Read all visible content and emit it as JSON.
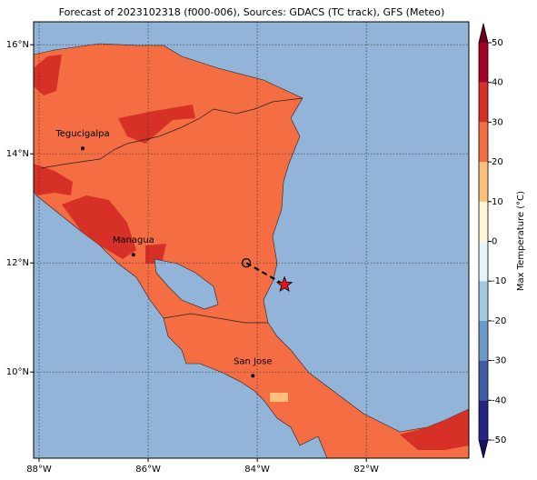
{
  "map": {
    "title": "Forecast of 2023102318 (f000-006), Sources: GDACS (TC track), GFS (Meteo)",
    "xlim": [
      -88.1,
      -80.12
    ],
    "ylim": [
      8.42,
      16.42
    ],
    "xticks": [
      {
        "value": -88,
        "label": "88°W"
      },
      {
        "value": -86,
        "label": "86°W"
      },
      {
        "value": -84,
        "label": "84°W"
      },
      {
        "value": -82,
        "label": "82°W"
      }
    ],
    "yticks": [
      {
        "value": 10,
        "label": "10°N"
      },
      {
        "value": 12,
        "label": "12°N"
      },
      {
        "value": 14,
        "label": "14°N"
      },
      {
        "value": 16,
        "label": "16°N"
      }
    ],
    "grid": true,
    "cities": [
      {
        "name": "Tegucigalpa",
        "lon": -87.2,
        "lat": 14.1
      },
      {
        "name": "Managua",
        "lon": -86.27,
        "lat": 12.15
      },
      {
        "name": "San Jose",
        "lon": -84.08,
        "lat": 9.93
      }
    ],
    "track": {
      "lon": [
        -84.2,
        -83.5
      ],
      "lat": [
        12.0,
        11.6
      ]
    },
    "colorbar": {
      "label": "Max Temperature (°C)",
      "ticks": [
        -50,
        -40,
        -30,
        -20,
        -10,
        0,
        10,
        20,
        30,
        40,
        50
      ],
      "colors": [
        "#252584",
        "#3d5ca6",
        "#6c9ac8",
        "#a2c9e0",
        "#e6f5f9",
        "#fff6d6",
        "#fdc07a",
        "#f46d43",
        "#d73027",
        "#a50026"
      ],
      "under": "#14145a",
      "over": "#6e0019"
    }
  }
}
